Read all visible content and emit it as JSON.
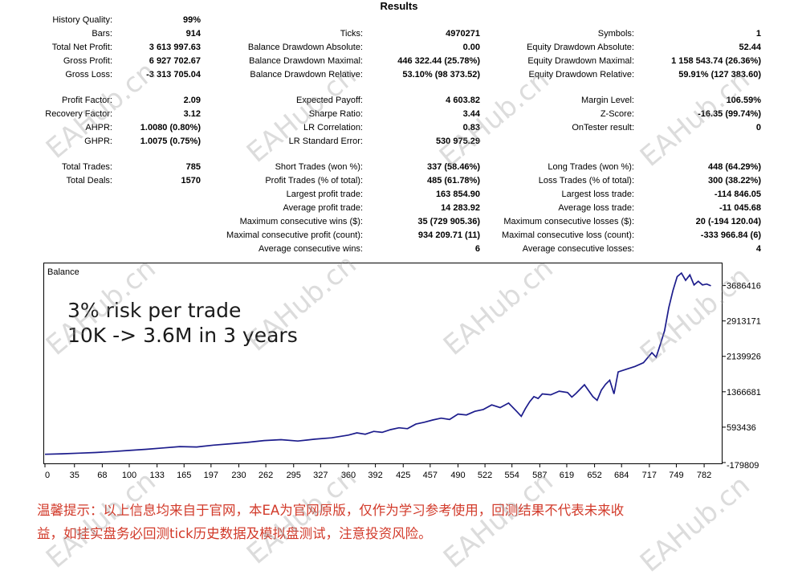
{
  "title": "Results",
  "stats_col1": [
    {
      "label": "History Quality:",
      "value": "99%"
    },
    {
      "label": "Bars:",
      "value": "914"
    },
    {
      "label": "Total Net Profit:",
      "value": "3 613 997.63"
    },
    {
      "label": "Gross Profit:",
      "value": "6 927 702.67"
    },
    {
      "label": "Gross Loss:",
      "value": "-3 313 705.04"
    },
    {
      "label": "Profit Factor:",
      "value": "2.09"
    },
    {
      "label": "Recovery Factor:",
      "value": "3.12"
    },
    {
      "label": "AHPR:",
      "value": "1.0080 (0.80%)"
    },
    {
      "label": "GHPR:",
      "value": "1.0075 (0.75%)"
    },
    {
      "label": "Total Trades:",
      "value": "785"
    },
    {
      "label": "Total Deals:",
      "value": "1570"
    }
  ],
  "stats_col2": [
    {
      "label": "Ticks:",
      "value": "4970271"
    },
    {
      "label": "Balance Drawdown Absolute:",
      "value": "0.00"
    },
    {
      "label": "Balance Drawdown Maximal:",
      "value": "446 322.44 (25.78%)"
    },
    {
      "label": "Balance Drawdown Relative:",
      "value": "53.10% (98 373.52)"
    },
    {
      "label": "Expected Payoff:",
      "value": "4 603.82"
    },
    {
      "label": "Sharpe Ratio:",
      "value": "3.44"
    },
    {
      "label": "LR Correlation:",
      "value": "0.83"
    },
    {
      "label": "LR Standard Error:",
      "value": "530 975.29"
    },
    {
      "label": "Short Trades (won %):",
      "value": "337 (58.46%)"
    },
    {
      "label": "Profit Trades (% of total):",
      "value": "485 (61.78%)"
    },
    {
      "label": "Largest profit trade:",
      "value": "163 854.90"
    },
    {
      "label": "Average profit trade:",
      "value": "14 283.92"
    },
    {
      "label": "Maximum consecutive wins ($):",
      "value": "35 (729 905.36)"
    },
    {
      "label": "Maximal consecutive profit (count):",
      "value": "934 209.71 (11)"
    },
    {
      "label": "Average consecutive wins:",
      "value": "6"
    }
  ],
  "stats_col3": [
    {
      "label": "Symbols:",
      "value": "1"
    },
    {
      "label": "Equity Drawdown Absolute:",
      "value": "52.44"
    },
    {
      "label": "Equity Drawdown Maximal:",
      "value": "1 158 543.74 (26.36%)"
    },
    {
      "label": "Equity Drawdown Relative:",
      "value": "59.91% (127 383.60)"
    },
    {
      "label": "Margin Level:",
      "value": "106.59%"
    },
    {
      "label": "Z-Score:",
      "value": "-16.35 (99.74%)"
    },
    {
      "label": "OnTester result:",
      "value": "0"
    },
    {
      "label": "Long Trades (won %):",
      "value": "448 (64.29%)"
    },
    {
      "label": "Loss Trades (% of total):",
      "value": "300 (38.22%)"
    },
    {
      "label": "Largest loss trade:",
      "value": "-114 846.05"
    },
    {
      "label": "Average loss trade:",
      "value": "-11 045.68"
    },
    {
      "label": "Maximum consecutive losses ($):",
      "value": "20 (-194 120.04)"
    },
    {
      "label": "Maximal consecutive loss (count):",
      "value": "-333 966.84 (6)"
    },
    {
      "label": "Average consecutive losses:",
      "value": "4"
    }
  ],
  "chart_data": {
    "type": "line",
    "title": "Balance",
    "annotation_lines": [
      "3% risk per trade",
      "10K -> 3.6M in 3 years"
    ],
    "x_ticks": [
      0,
      35,
      68,
      100,
      133,
      165,
      197,
      230,
      262,
      295,
      327,
      360,
      392,
      425,
      457,
      490,
      522,
      554,
      587,
      619,
      652,
      684,
      717,
      749,
      782
    ],
    "y_ticks": [
      -179809,
      593436,
      1366681,
      2139926,
      2913171,
      3686416
    ],
    "xlim": [
      0,
      800
    ],
    "ylim": [
      -179809,
      4100000
    ],
    "line_color": "#1c1c8c",
    "series": [
      {
        "x": [
          0,
          20,
          40,
          60,
          80,
          100,
          120,
          140,
          160,
          180,
          200,
          220,
          240,
          260,
          280,
          300,
          320,
          340,
          360,
          370,
          380,
          390,
          400,
          410,
          420,
          430,
          440,
          450,
          460,
          470,
          480,
          490,
          500,
          510,
          520,
          530,
          540,
          550,
          560,
          565,
          570,
          575,
          580,
          585,
          590,
          600,
          610,
          620,
          625,
          630,
          640,
          650,
          655,
          660,
          665,
          670,
          675,
          680,
          690,
          700,
          710,
          720,
          725,
          730,
          735,
          740,
          745,
          750,
          755,
          760,
          765,
          770,
          775,
          780,
          785,
          790
        ],
        "y": [
          0,
          12000,
          25000,
          40000,
          60000,
          85000,
          110000,
          140000,
          170000,
          160000,
          200000,
          230000,
          260000,
          300000,
          320000,
          290000,
          330000,
          360000,
          420000,
          470000,
          440000,
          500000,
          480000,
          540000,
          580000,
          560000,
          660000,
          700000,
          750000,
          790000,
          760000,
          880000,
          860000,
          940000,
          980000,
          1080000,
          1020000,
          1120000,
          930000,
          830000,
          1000000,
          1150000,
          1260000,
          1220000,
          1320000,
          1300000,
          1380000,
          1350000,
          1250000,
          1330000,
          1520000,
          1260000,
          1180000,
          1400000,
          1530000,
          1620000,
          1320000,
          1800000,
          1860000,
          1920000,
          2000000,
          2220000,
          2120000,
          2400000,
          2700000,
          3200000,
          3580000,
          3880000,
          3960000,
          3800000,
          3920000,
          3700000,
          3780000,
          3700000,
          3720000,
          3680000
        ]
      }
    ]
  },
  "note": {
    "line1": "温馨提示：以上信息均来自于官网，本EA为官网原版，仅作为学习参考使用，回测结果不代表未来收",
    "line2": "益，如挂实盘务必回测tick历史数据及模拟盘测试，注意投资风险。"
  },
  "watermark": "EAHub.cn"
}
